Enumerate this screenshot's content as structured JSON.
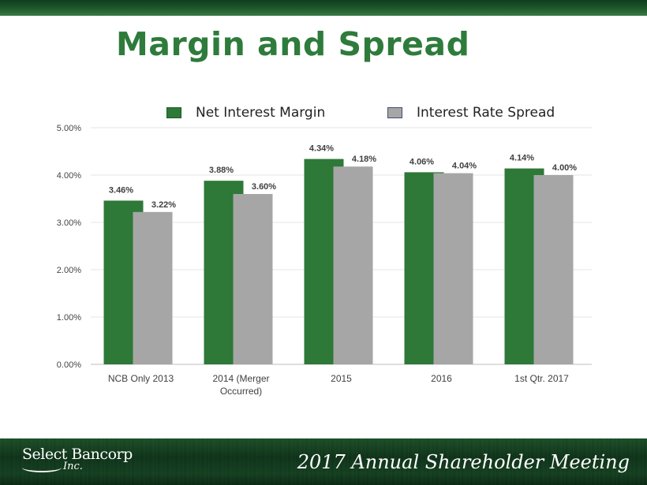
{
  "slide": {
    "title": "Margin and Spread",
    "footer_logo": "Select Bancorp",
    "footer_logo_sub": "Inc.",
    "footer_text": "2017 Annual Shareholder Meeting"
  },
  "colors": {
    "net_interest_margin": "#2e7838",
    "interest_rate_spread": "#a6a6a6",
    "title": "#2e7b3b"
  },
  "chart_data": {
    "type": "bar",
    "categories": [
      "NCB Only 2013",
      "2014 (Merger Occurred)",
      "2015",
      "2016",
      "1st Qtr. 2017"
    ],
    "category_lines": [
      [
        "NCB Only 2013"
      ],
      [
        "2014 (Merger",
        "Occurred)"
      ],
      [
        "2015"
      ],
      [
        "2016"
      ],
      [
        "1st Qtr. 2017"
      ]
    ],
    "series": [
      {
        "name": "Net Interest Margin",
        "values": [
          3.46,
          3.88,
          4.34,
          4.06,
          4.14
        ],
        "labels": [
          "3.46%",
          "3.88%",
          "4.34%",
          "4.06%",
          "4.14%"
        ]
      },
      {
        "name": "Interest Rate Spread",
        "values": [
          3.22,
          3.6,
          4.18,
          4.04,
          4.0
        ],
        "labels": [
          "3.22%",
          "3.60%",
          "4.18%",
          "4.04%",
          "4.00%"
        ]
      }
    ],
    "ylim": [
      0,
      5
    ],
    "yticks": [
      0,
      1,
      2,
      3,
      4,
      5
    ],
    "ytick_labels": [
      "0.00%",
      "1.00%",
      "2.00%",
      "3.00%",
      "4.00%",
      "5.00%"
    ],
    "title": "",
    "xlabel": "",
    "ylabel": "",
    "grid": true,
    "legend_position": "top"
  }
}
